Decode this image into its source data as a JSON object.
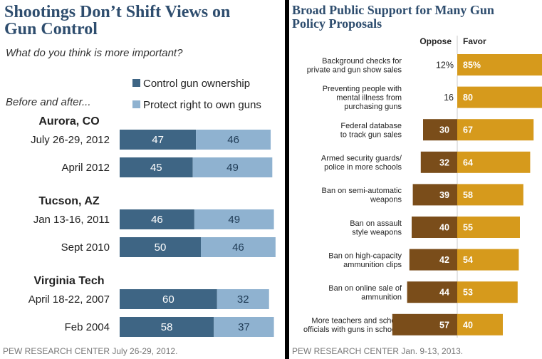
{
  "left": {
    "title_line1": "Shootings Don’t Shift Views on",
    "title_line2": "Gun Control",
    "subtitle": "What do you think is more important?",
    "before_after": "Before and after...",
    "source": "PEW RESEARCH  CENTER July 26-29, 2012."
  },
  "right": {
    "title_line1": "Broad Public Support for Many Gun",
    "title_line2": "Policy Proposals",
    "source": "PEW RESEARCH  CENTER Jan. 9-13, 2013."
  },
  "colors": {
    "control": "#3e6584",
    "protect": "#8fb2d0",
    "oppose": "#7a4d1a",
    "favor": "#d69a1c",
    "title": "#2e4d6e"
  },
  "chart_data": [
    {
      "type": "bar",
      "stacked": true,
      "orientation": "horizontal",
      "title": "Shootings Don’t Shift Views on Gun Control",
      "subtitle": "What do you think is more important?",
      "legend": [
        "Control gun ownership",
        "Protect right to own guns"
      ],
      "legend_position": "top-right",
      "groups": [
        {
          "name": "Aurora, CO",
          "rows": [
            {
              "label": "July 26-29, 2012",
              "control": 47,
              "protect": 46
            },
            {
              "label": "April 2012",
              "control": 45,
              "protect": 49
            }
          ]
        },
        {
          "name": "Tucson, AZ",
          "rows": [
            {
              "label": "Jan 13-16, 2011",
              "control": 46,
              "protect": 49
            },
            {
              "label": "Sept 2010",
              "control": 50,
              "protect": 46
            }
          ]
        },
        {
          "name": "Virginia Tech",
          "rows": [
            {
              "label": "April 18-22, 2007",
              "control": 60,
              "protect": 32
            },
            {
              "label": "Feb 2004",
              "control": 58,
              "protect": 37
            }
          ]
        }
      ]
    },
    {
      "type": "bar",
      "stacked": true,
      "orientation": "horizontal",
      "diverging": true,
      "title": "Broad Public Support for Many Gun Policy Proposals",
      "column_headers": [
        "Oppose",
        "Favor"
      ],
      "rows": [
        {
          "label": [
            "Background checks for",
            "private and gun show sales"
          ],
          "oppose": 12,
          "favor": 85,
          "oppose_text": "12%",
          "favor_text": "85%"
        },
        {
          "label": [
            "Preventing people with",
            "mental illness from",
            "purchasing guns"
          ],
          "oppose": 16,
          "favor": 80,
          "oppose_text": "16",
          "favor_text": "80"
        },
        {
          "label": [
            "Federal database",
            "to track gun sales"
          ],
          "oppose": 30,
          "favor": 67,
          "oppose_text": "30",
          "favor_text": "67"
        },
        {
          "label": [
            "Armed security guards/",
            "police in more schools"
          ],
          "oppose": 32,
          "favor": 64,
          "oppose_text": "32",
          "favor_text": "64"
        },
        {
          "label": [
            "Ban on semi-automatic",
            "weapons"
          ],
          "oppose": 39,
          "favor": 58,
          "oppose_text": "39",
          "favor_text": "58"
        },
        {
          "label": [
            "Ban on assault",
            "style weapons"
          ],
          "oppose": 40,
          "favor": 55,
          "oppose_text": "40",
          "favor_text": "55"
        },
        {
          "label": [
            "Ban on high-capacity",
            "ammunition clips"
          ],
          "oppose": 42,
          "favor": 54,
          "oppose_text": "42",
          "favor_text": "54"
        },
        {
          "label": [
            "Ban on online sale of",
            "ammunition"
          ],
          "oppose": 44,
          "favor": 53,
          "oppose_text": "44",
          "favor_text": "53"
        },
        {
          "label": [
            "More teachers and school",
            "officials with guns in schools"
          ],
          "oppose": 57,
          "favor": 40,
          "oppose_text": "57",
          "favor_text": "40"
        }
      ]
    }
  ]
}
